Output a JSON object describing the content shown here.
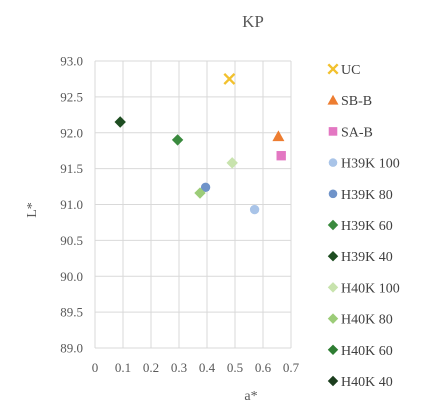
{
  "chart_data": {
    "type": "scatter",
    "title": "KP",
    "xlabel": "a*",
    "ylabel": "L*",
    "xlim": [
      0,
      0.7
    ],
    "ylim": [
      89.0,
      93.0
    ],
    "x_ticks": [
      "0",
      "0.1",
      "0.2",
      "0.3",
      "0.4",
      "0.5",
      "0.6",
      "0.7"
    ],
    "y_ticks": [
      "89.0",
      "89.5",
      "90.0",
      "90.5",
      "91.0",
      "91.5",
      "92.0",
      "92.5",
      "93.0"
    ],
    "grid": "both",
    "legend_position": "right",
    "series": [
      {
        "name": "UC",
        "marker": "x",
        "color": "#f2c12e",
        "points": [
          {
            "x": 0.48,
            "y": 92.75
          }
        ]
      },
      {
        "name": "SB-B",
        "marker": "triangle",
        "color": "#ed7d31",
        "points": [
          {
            "x": 0.655,
            "y": 91.95
          }
        ]
      },
      {
        "name": "SA-B",
        "marker": "square",
        "color": "#e377c2",
        "points": [
          {
            "x": 0.665,
            "y": 91.68
          }
        ]
      },
      {
        "name": "H39K 100",
        "marker": "circle",
        "color": "#a9c4e8",
        "points": [
          {
            "x": 0.57,
            "y": 90.93
          }
        ]
      },
      {
        "name": "H39K 80",
        "marker": "circle",
        "color": "#6f93c9",
        "points": [
          {
            "x": 0.395,
            "y": 91.24
          }
        ]
      },
      {
        "name": "H39K 60",
        "marker": "diamond",
        "color": "#3a8a3e",
        "points": [
          {
            "x": 0.295,
            "y": 91.9
          }
        ]
      },
      {
        "name": "H39K 40",
        "marker": "diamond",
        "color": "#1e4d21",
        "points": [
          {
            "x": 0.09,
            "y": 92.15
          }
        ]
      },
      {
        "name": "H40K 100",
        "marker": "diamond",
        "color": "#c8e3ad",
        "points": [
          {
            "x": 0.49,
            "y": 91.58
          }
        ]
      },
      {
        "name": "H40K 80",
        "marker": "diamond",
        "color": "#9ccc78",
        "points": [
          {
            "x": 0.375,
            "y": 91.16
          }
        ]
      },
      {
        "name": "H40K 60",
        "marker": "diamond",
        "color": "#2e7d32",
        "points": []
      },
      {
        "name": "H40K 40",
        "marker": "diamond",
        "color": "#1b3d1d",
        "points": []
      }
    ]
  }
}
